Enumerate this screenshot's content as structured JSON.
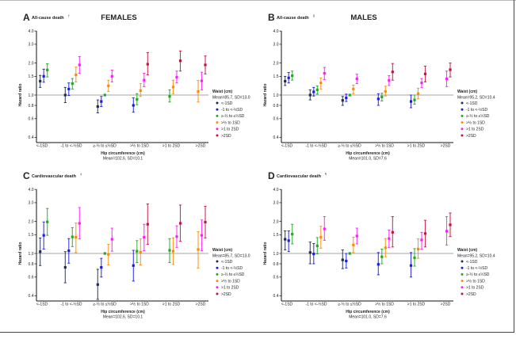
{
  "chart_data": {
    "series": [
      {
        "name": "<-1SD",
        "color": "#1f2d4d"
      },
      {
        "name": "-1 to <-½SD",
        "color": "#1a1ae6"
      },
      {
        "name": "≥-½ to ≤½SD",
        "color": "#1faa1f"
      },
      {
        "name": ">½ to 1SD",
        "color": "#ff8c00"
      },
      {
        "name": ">1 to 2SD",
        "color": "#ff1aff"
      },
      {
        "name": ">2SD",
        "color": "#c8103c"
      }
    ],
    "categories": [
      "<-1SD",
      "-1 to <-½SD",
      "≥-½ to ≤½SD",
      ">½ to 1SD",
      ">1 to 2SD",
      ">2SD"
    ],
    "y_ticks": [
      "4.0",
      "3.0",
      "2.0",
      "1.5",
      "1.0",
      "0.8",
      "0.6",
      "0.4"
    ],
    "y_scale": "log",
    "ylim": [
      0.37,
      4.0
    ],
    "reference_line": 1.0,
    "ylabel": "Hazard ratio",
    "xlabel": "Hip circumference (cm)",
    "legend_title": "Waist (cm)",
    "legend_placement": "right",
    "panels": [
      {
        "type": "scatter",
        "letter": "A",
        "title": "All-cause death",
        "superscript": "†",
        "header": "FEMALES",
        "xlabel_sub": "Mean=102.6, SD=10.1",
        "legend_sub": "Mean=85.7, SD=13.0",
        "points": [
          [
            [
              0,
              1.35,
              1.18,
              1.53
            ],
            [
              1,
              1.5,
              1.32,
              1.75
            ],
            [
              2,
              1.72,
              1.48,
              1.97
            ]
          ],
          [
            [
              0,
              1.0,
              0.85,
              1.18
            ],
            [
              1,
              1.14,
              0.99,
              1.3
            ],
            [
              2,
              1.28,
              1.14,
              1.43
            ],
            [
              3,
              1.55,
              1.33,
              1.83
            ],
            [
              4,
              1.92,
              1.6,
              2.3
            ]
          ],
          [
            [
              0,
              0.78,
              0.68,
              0.9
            ],
            [
              1,
              0.87,
              0.78,
              0.97
            ],
            [
              2,
              1.0,
              null,
              null
            ],
            [
              3,
              1.22,
              1.08,
              1.38
            ],
            [
              4,
              1.5,
              1.33,
              1.72
            ]
          ],
          [
            [
              1,
              0.8,
              0.69,
              0.94
            ],
            [
              2,
              0.91,
              0.81,
              1.03
            ],
            [
              3,
              1.1,
              0.97,
              1.28
            ],
            [
              4,
              1.38,
              1.2,
              1.6
            ],
            [
              5,
              1.95,
              1.55,
              2.5
            ]
          ],
          [
            [
              2,
              0.97,
              0.86,
              1.12
            ],
            [
              3,
              1.19,
              1.03,
              1.38
            ],
            [
              4,
              1.47,
              1.3,
              1.68
            ],
            [
              5,
              2.1,
              1.68,
              2.6
            ]
          ],
          [
            [
              3,
              1.08,
              0.86,
              1.37
            ],
            [
              4,
              1.36,
              1.12,
              1.64
            ],
            [
              5,
              1.92,
              1.58,
              2.33
            ]
          ]
        ]
      },
      {
        "type": "scatter",
        "letter": "B",
        "title": "All-cause death",
        "superscript": "§",
        "header": "MALES",
        "xlabel_sub": "Mean=101.0, SD=7.6",
        "legend_sub": "Mean=95.2, SD=10.4",
        "points": [
          [
            [
              0,
              1.35,
              1.23,
              1.5
            ],
            [
              1,
              1.45,
              1.3,
              1.63
            ],
            [
              2,
              1.52,
              1.38,
              1.68
            ]
          ],
          [
            [
              0,
              1.0,
              0.9,
              1.12
            ],
            [
              1,
              1.07,
              0.98,
              1.18
            ],
            [
              2,
              1.12,
              1.02,
              1.22
            ],
            [
              3,
              1.3,
              1.14,
              1.45
            ],
            [
              4,
              1.6,
              1.4,
              1.82
            ]
          ],
          [
            [
              0,
              0.89,
              0.8,
              0.97
            ],
            [
              1,
              0.94,
              0.87,
              1.02
            ],
            [
              2,
              1.0,
              null,
              null
            ],
            [
              3,
              1.14,
              1.03,
              1.24
            ],
            [
              4,
              1.42,
              1.28,
              1.57
            ]
          ],
          [
            [
              1,
              0.92,
              0.8,
              1.03
            ],
            [
              2,
              0.96,
              0.88,
              1.04
            ],
            [
              3,
              1.08,
              0.98,
              1.21
            ],
            [
              4,
              1.37,
              1.23,
              1.52
            ],
            [
              5,
              1.65,
              1.38,
              1.98
            ]
          ],
          [
            [
              1,
              0.87,
              0.76,
              1.0
            ],
            [
              2,
              0.9,
              0.82,
              1.0
            ],
            [
              3,
              1.03,
              0.92,
              1.16
            ],
            [
              4,
              1.3,
              1.18,
              1.43
            ],
            [
              5,
              1.58,
              1.33,
              1.87
            ]
          ],
          [
            [
              4,
              1.42,
              1.2,
              1.68
            ],
            [
              5,
              1.73,
              1.48,
              2.0
            ]
          ]
        ]
      },
      {
        "type": "scatter",
        "letter": "C",
        "title": "Cardiovascular death",
        "superscript": "‡",
        "header": "",
        "xlabel_sub": "Mean=102.6, SD=10.1",
        "legend_sub": "Mean=85.7, SD=13.0",
        "points": [
          [
            [
              0,
              1.04,
              0.77,
              1.4
            ],
            [
              1,
              1.48,
              1.1,
              1.98
            ],
            [
              2,
              1.98,
              1.48,
              2.65
            ]
          ],
          [
            [
              0,
              0.74,
              0.53,
              1.04
            ],
            [
              1,
              1.06,
              0.81,
              1.38
            ],
            [
              2,
              1.43,
              1.16,
              1.75
            ],
            [
              3,
              1.42,
              1.02,
              1.93
            ],
            [
              4,
              1.92,
              1.37,
              2.7
            ]
          ],
          [
            [
              0,
              0.51,
              0.37,
              0.71
            ],
            [
              1,
              0.74,
              0.6,
              0.9
            ],
            [
              2,
              1.0,
              null,
              null
            ],
            [
              3,
              0.98,
              0.78,
              1.22
            ],
            [
              4,
              1.36,
              1.05,
              1.73
            ]
          ],
          [
            [
              1,
              0.77,
              0.55,
              1.07
            ],
            [
              2,
              1.05,
              0.82,
              1.32
            ],
            [
              3,
              1.03,
              0.78,
              1.37
            ],
            [
              4,
              1.42,
              1.06,
              1.88
            ],
            [
              5,
              1.88,
              1.22,
              2.92
            ]
          ],
          [
            [
              2,
              1.07,
              0.82,
              1.38
            ],
            [
              3,
              1.05,
              0.79,
              1.4
            ],
            [
              4,
              1.44,
              1.14,
              1.82
            ],
            [
              5,
              1.92,
              1.3,
              2.85
            ]
          ],
          [
            [
              3,
              1.09,
              0.73,
              1.6
            ],
            [
              4,
              1.48,
              1.06,
              2.06
            ],
            [
              5,
              1.97,
              1.4,
              2.78
            ]
          ]
        ]
      },
      {
        "type": "scatter",
        "letter": "D",
        "title": "Cardiovascular death",
        "superscript": "¶",
        "header": "",
        "xlabel_sub": "Mean=101.0, SD=7.6",
        "legend_sub": "Mean=95.2, SD=10.4",
        "points": [
          [
            [
              0,
              1.36,
              1.08,
              1.63
            ],
            [
              1,
              1.32,
              1.04,
              1.63
            ],
            [
              2,
              1.52,
              1.23,
              1.88
            ]
          ],
          [
            [
              0,
              1.02,
              0.8,
              1.28
            ],
            [
              1,
              0.99,
              0.8,
              1.24
            ],
            [
              2,
              1.18,
              0.99,
              1.41
            ],
            [
              3,
              1.42,
              1.12,
              1.8
            ],
            [
              4,
              1.7,
              1.33,
              2.22
            ]
          ],
          [
            [
              0,
              0.87,
              0.72,
              1.08
            ],
            [
              1,
              0.85,
              0.73,
              1.0
            ],
            [
              2,
              1.0,
              null,
              null
            ],
            [
              3,
              1.2,
              1.02,
              1.42
            ],
            [
              4,
              1.46,
              1.23,
              1.73
            ]
          ],
          [
            [
              1,
              0.79,
              0.63,
              1.02
            ],
            [
              2,
              0.93,
              0.8,
              1.1
            ],
            [
              3,
              1.13,
              0.93,
              1.38
            ],
            [
              4,
              1.38,
              1.14,
              1.66
            ],
            [
              5,
              1.58,
              1.15,
              2.22
            ]
          ],
          [
            [
              1,
              0.77,
              0.6,
              1.02
            ],
            [
              2,
              0.91,
              0.76,
              1.11
            ],
            [
              3,
              1.1,
              0.9,
              1.37
            ],
            [
              4,
              1.34,
              1.1,
              1.58
            ],
            [
              5,
              1.54,
              1.15,
              2.05
            ]
          ],
          [
            [
              4,
              1.62,
              1.2,
              2.22
            ],
            [
              5,
              1.86,
              1.44,
              2.4
            ]
          ]
        ]
      }
    ]
  }
}
